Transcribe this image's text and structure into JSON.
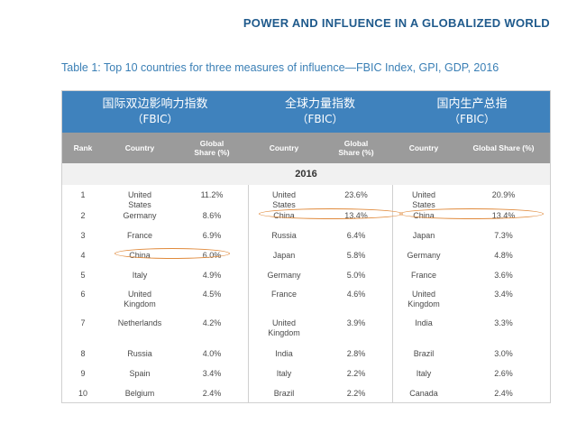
{
  "header": {
    "title": "POWER AND INFLUENCE IN A GLOBALIZED WORLD"
  },
  "caption": "Table 1: Top 10 countries for three measures of influence—FBIC Index, GPI, GDP, 2016",
  "groups": [
    {
      "zh": "国际双边影响力指数",
      "en": "（FBIC）"
    },
    {
      "zh": "全球力量指数",
      "en": "（FBIC）"
    },
    {
      "zh": "国内生产总指",
      "en": "（FBIC）"
    }
  ],
  "columns": {
    "rank": "Rank",
    "country": "Country",
    "share": "Global Share (%)"
  },
  "year": "2016",
  "rows": [
    {
      "rank": "1",
      "c1": "United States",
      "s1": "11.2%",
      "c2": "United States",
      "s2": "23.6%",
      "c3": "United States",
      "s3": "20.9%"
    },
    {
      "rank": "2",
      "c1": "Germany",
      "s1": "8.6%",
      "c2": "China",
      "s2": "13.4%",
      "c3": "China",
      "s3": "13.4%"
    },
    {
      "rank": "3",
      "c1": "France",
      "s1": "6.9%",
      "c2": "Russia",
      "s2": "6.4%",
      "c3": "Japan",
      "s3": "7.3%"
    },
    {
      "rank": "4",
      "c1": "China",
      "s1": "6.0%",
      "c2": "Japan",
      "s2": "5.8%",
      "c3": "Germany",
      "s3": "4.8%"
    },
    {
      "rank": "5",
      "c1": "Italy",
      "s1": "4.9%",
      "c2": "Germany",
      "s2": "5.0%",
      "c3": "France",
      "s3": "3.6%"
    },
    {
      "rank": "6",
      "c1": "United Kingdom",
      "s1": "4.5%",
      "c2": "France",
      "s2": "4.6%",
      "c3": "United Kingdom",
      "s3": "3.4%"
    },
    {
      "rank": "7",
      "c1": "Netherlands",
      "s1": "4.2%",
      "c2": "United Kingdom",
      "s2": "3.9%",
      "c3": "India",
      "s3": "3.3%"
    },
    {
      "rank": "8",
      "c1": "Russia",
      "s1": "4.0%",
      "c2": "India",
      "s2": "2.8%",
      "c3": "Brazil",
      "s3": "3.0%"
    },
    {
      "rank": "9",
      "c1": "Spain",
      "s1": "3.4%",
      "c2": "Italy",
      "s2": "2.2%",
      "c3": "Italy",
      "s3": "2.6%"
    },
    {
      "rank": "10",
      "c1": "Belgium",
      "s1": "2.4%",
      "c2": "Brazil",
      "s2": "2.2%",
      "c3": "Canada",
      "s3": "2.4%"
    }
  ],
  "highlight_color": "#e08a3c"
}
